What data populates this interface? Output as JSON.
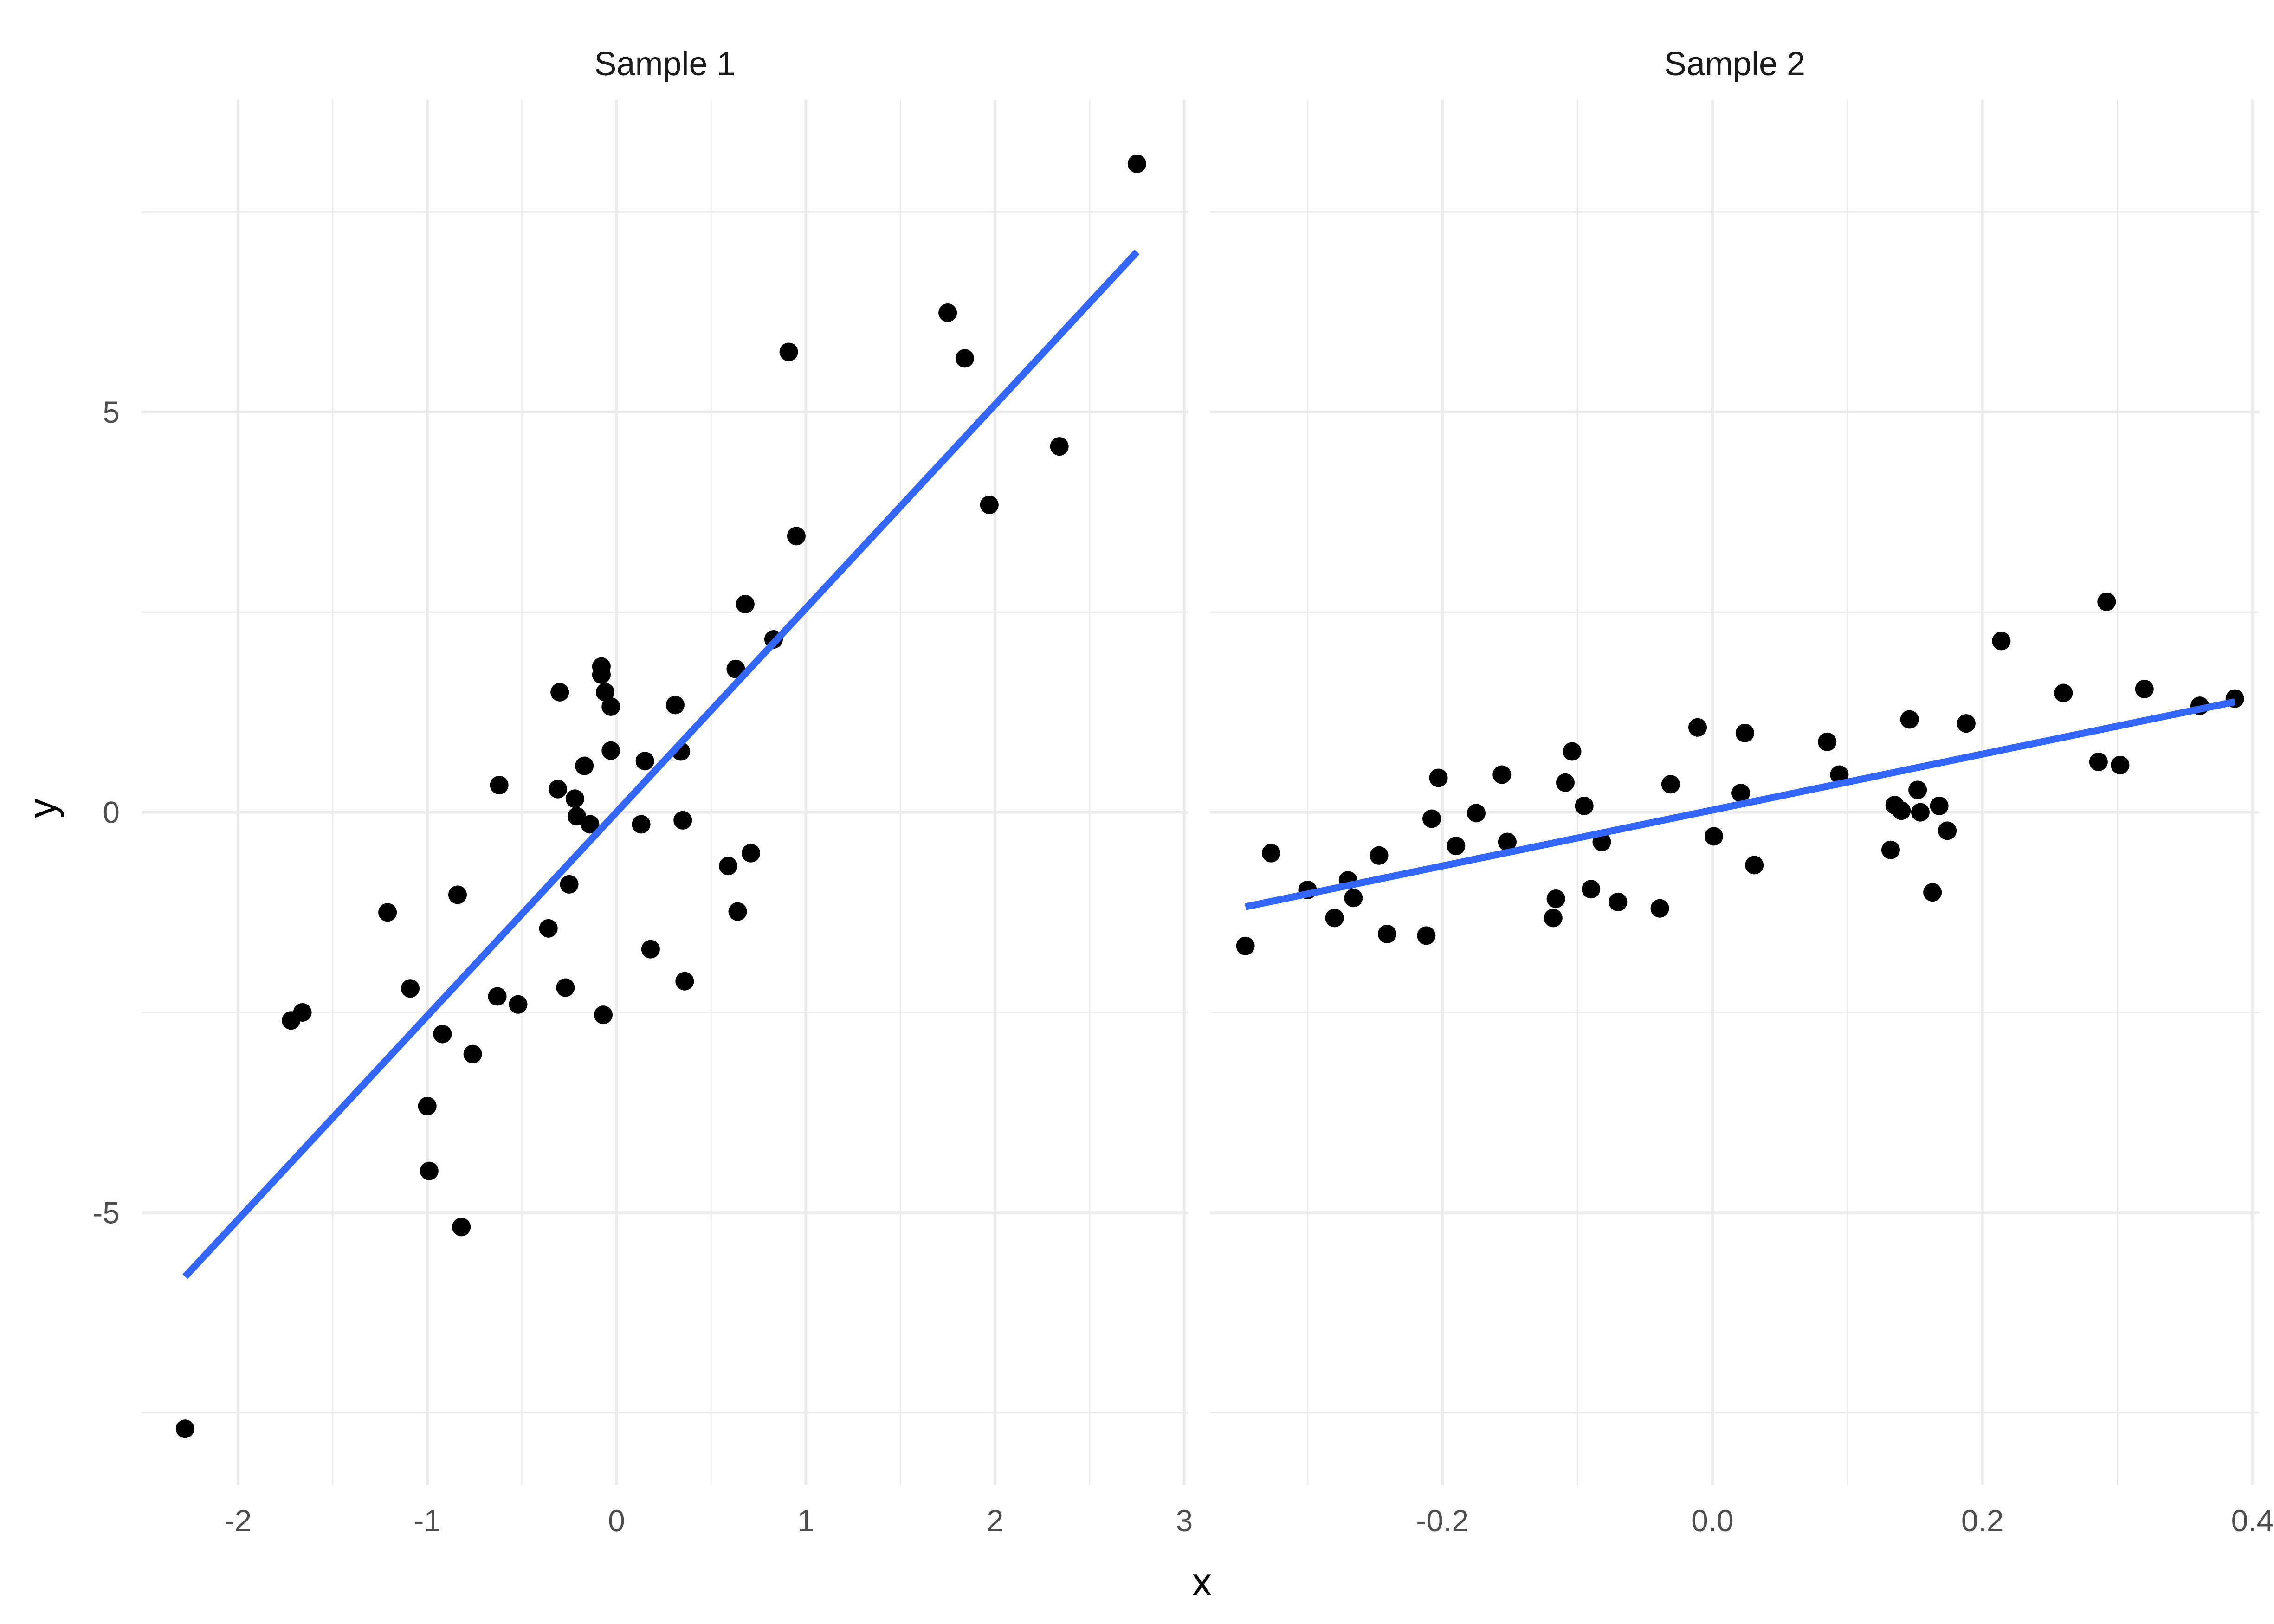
{
  "chart_data": {
    "type": "scatter",
    "xlabel": "x",
    "ylabel": "y",
    "ylim": [
      -8.4,
      8.9
    ],
    "y_ticks": [
      -5,
      0,
      5
    ],
    "y_tick_labels": [
      "-5",
      "0",
      "5"
    ],
    "y_minor": [
      -7.5,
      -2.5,
      2.5,
      7.5
    ],
    "grid": true,
    "point_color": "#000000",
    "line_color": "#3366ff",
    "panels": [
      {
        "strip": "Sample 1",
        "xlim": [
          -2.51,
          3.02
        ],
        "x_ticks": [
          -2,
          -1,
          0,
          1,
          2,
          3
        ],
        "x_tick_labels": [
          "-2",
          "-1",
          "0",
          "1",
          "2",
          "3"
        ],
        "x_minor": [
          -1.5,
          -0.5,
          0.5,
          1.5,
          2.5
        ],
        "points": [
          [
            -2.28,
            -7.7
          ],
          [
            -1.72,
            -2.6
          ],
          [
            -1.66,
            -2.5
          ],
          [
            -1.21,
            -1.25
          ],
          [
            -1.09,
            -2.2
          ],
          [
            -1.0,
            -3.67
          ],
          [
            -0.99,
            -4.48
          ],
          [
            -0.92,
            -2.77
          ],
          [
            -0.84,
            -1.03
          ],
          [
            -0.82,
            -5.18
          ],
          [
            -0.76,
            -3.02
          ],
          [
            -0.63,
            -2.3
          ],
          [
            -0.62,
            0.34
          ],
          [
            -0.52,
            -2.4
          ],
          [
            -0.36,
            -1.45
          ],
          [
            -0.31,
            0.29
          ],
          [
            -0.3,
            1.5
          ],
          [
            -0.27,
            -2.19
          ],
          [
            -0.25,
            -0.9
          ],
          [
            -0.22,
            0.17
          ],
          [
            -0.21,
            -0.05
          ],
          [
            -0.17,
            0.58
          ],
          [
            -0.14,
            -0.15
          ],
          [
            -0.08,
            1.82
          ],
          [
            -0.08,
            1.72
          ],
          [
            -0.07,
            -2.53
          ],
          [
            -0.06,
            1.5
          ],
          [
            -0.03,
            1.32
          ],
          [
            -0.03,
            0.77
          ],
          [
            0.13,
            -0.15
          ],
          [
            0.15,
            0.64
          ],
          [
            0.18,
            -1.71
          ],
          [
            0.31,
            1.34
          ],
          [
            0.34,
            0.76
          ],
          [
            0.35,
            -0.1
          ],
          [
            0.36,
            -2.11
          ],
          [
            0.59,
            -0.67
          ],
          [
            0.63,
            1.79
          ],
          [
            0.64,
            -1.24
          ],
          [
            0.68,
            2.6
          ],
          [
            0.71,
            -0.51
          ],
          [
            0.83,
            2.16
          ],
          [
            0.91,
            5.75
          ],
          [
            0.95,
            3.45
          ],
          [
            1.75,
            6.24
          ],
          [
            1.84,
            5.67
          ],
          [
            1.97,
            3.84
          ],
          [
            2.34,
            4.57
          ],
          [
            2.75,
            8.1
          ]
        ],
        "fit_line": [
          [
            -2.28,
            -5.8
          ],
          [
            2.75,
            7.0
          ]
        ]
      },
      {
        "strip": "Sample 2",
        "xlim": [
          -0.372,
          0.405
        ],
        "x_ticks": [
          -0.2,
          0.0,
          0.2,
          0.4
        ],
        "x_tick_labels": [
          "-0.2",
          "0.0",
          "0.2",
          "0.4"
        ],
        "x_minor": [
          -0.3,
          -0.1,
          0.1,
          0.3
        ],
        "points": [
          [
            -0.346,
            -1.67
          ],
          [
            -0.327,
            -0.51
          ],
          [
            -0.3,
            -0.97
          ],
          [
            -0.28,
            -1.32
          ],
          [
            -0.27,
            -0.85
          ],
          [
            -0.266,
            -1.07
          ],
          [
            -0.247,
            -0.54
          ],
          [
            -0.241,
            -1.52
          ],
          [
            -0.212,
            -1.54
          ],
          [
            -0.208,
            -0.08
          ],
          [
            -0.203,
            0.43
          ],
          [
            -0.19,
            -0.42
          ],
          [
            -0.175,
            -0.01
          ],
          [
            -0.156,
            0.47
          ],
          [
            -0.152,
            -0.37
          ],
          [
            -0.118,
            -1.32
          ],
          [
            -0.116,
            -1.08
          ],
          [
            -0.109,
            0.37
          ],
          [
            -0.104,
            0.76
          ],
          [
            -0.095,
            0.08
          ],
          [
            -0.09,
            -0.96
          ],
          [
            -0.082,
            -0.37
          ],
          [
            -0.07,
            -1.12
          ],
          [
            -0.039,
            -1.2
          ],
          [
            -0.031,
            0.35
          ],
          [
            -0.011,
            1.06
          ],
          [
            0.001,
            -0.3
          ],
          [
            0.021,
            0.24
          ],
          [
            0.024,
            0.99
          ],
          [
            0.031,
            -0.66
          ],
          [
            0.085,
            0.88
          ],
          [
            0.094,
            0.47
          ],
          [
            0.132,
            -0.47
          ],
          [
            0.135,
            0.09
          ],
          [
            0.14,
            0.02
          ],
          [
            0.146,
            1.16
          ],
          [
            0.152,
            0.28
          ],
          [
            0.154,
            0.0
          ],
          [
            0.163,
            -1.0
          ],
          [
            0.168,
            0.08
          ],
          [
            0.174,
            -0.23
          ],
          [
            0.188,
            1.11
          ],
          [
            0.214,
            2.14
          ],
          [
            0.26,
            1.49
          ],
          [
            0.286,
            0.63
          ],
          [
            0.292,
            2.63
          ],
          [
            0.302,
            0.59
          ],
          [
            0.32,
            1.54
          ],
          [
            0.361,
            1.33
          ],
          [
            0.387,
            1.42
          ]
        ],
        "fit_line": [
          [
            -0.346,
            -1.18
          ],
          [
            0.387,
            1.38
          ]
        ]
      }
    ]
  }
}
